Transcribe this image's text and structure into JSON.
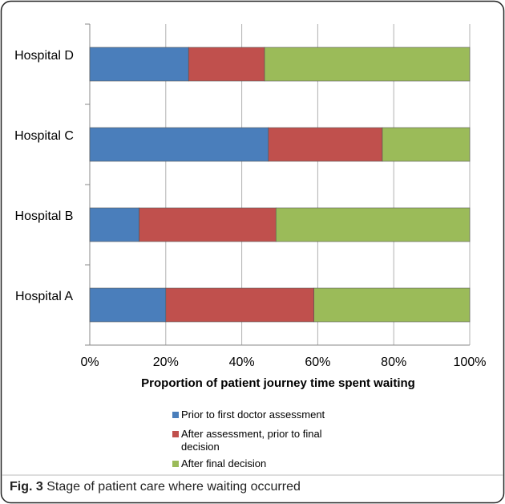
{
  "chart_data": {
    "type": "stacked_barh",
    "xlabel": "Proportion of patient journey time spent waiting",
    "categories": [
      "Hospital A",
      "Hospital B",
      "Hospital C",
      "Hospital D"
    ],
    "series": [
      {
        "name": "Prior to first doctor assessment",
        "color": "#4a7ebb",
        "values": [
          20,
          13,
          47,
          26
        ]
      },
      {
        "name": "After assessment, prior to final decision",
        "color": "#c0504d",
        "values": [
          39,
          36,
          30,
          20
        ]
      },
      {
        "name": "After final decision",
        "color": "#9bbb59",
        "values": [
          41,
          51,
          23,
          54
        ]
      }
    ],
    "xlim": [
      0,
      100
    ],
    "xticks": [
      {
        "value": 0,
        "label": "0%"
      },
      {
        "value": 20,
        "label": "20%"
      },
      {
        "value": 40,
        "label": "40%"
      },
      {
        "value": 60,
        "label": "60%"
      },
      {
        "value": 80,
        "label": "80%"
      },
      {
        "value": 100,
        "label": "100%"
      }
    ],
    "grid": true
  },
  "caption": {
    "label": "Fig. 3",
    "text": "Stage of patient care where waiting occurred"
  }
}
